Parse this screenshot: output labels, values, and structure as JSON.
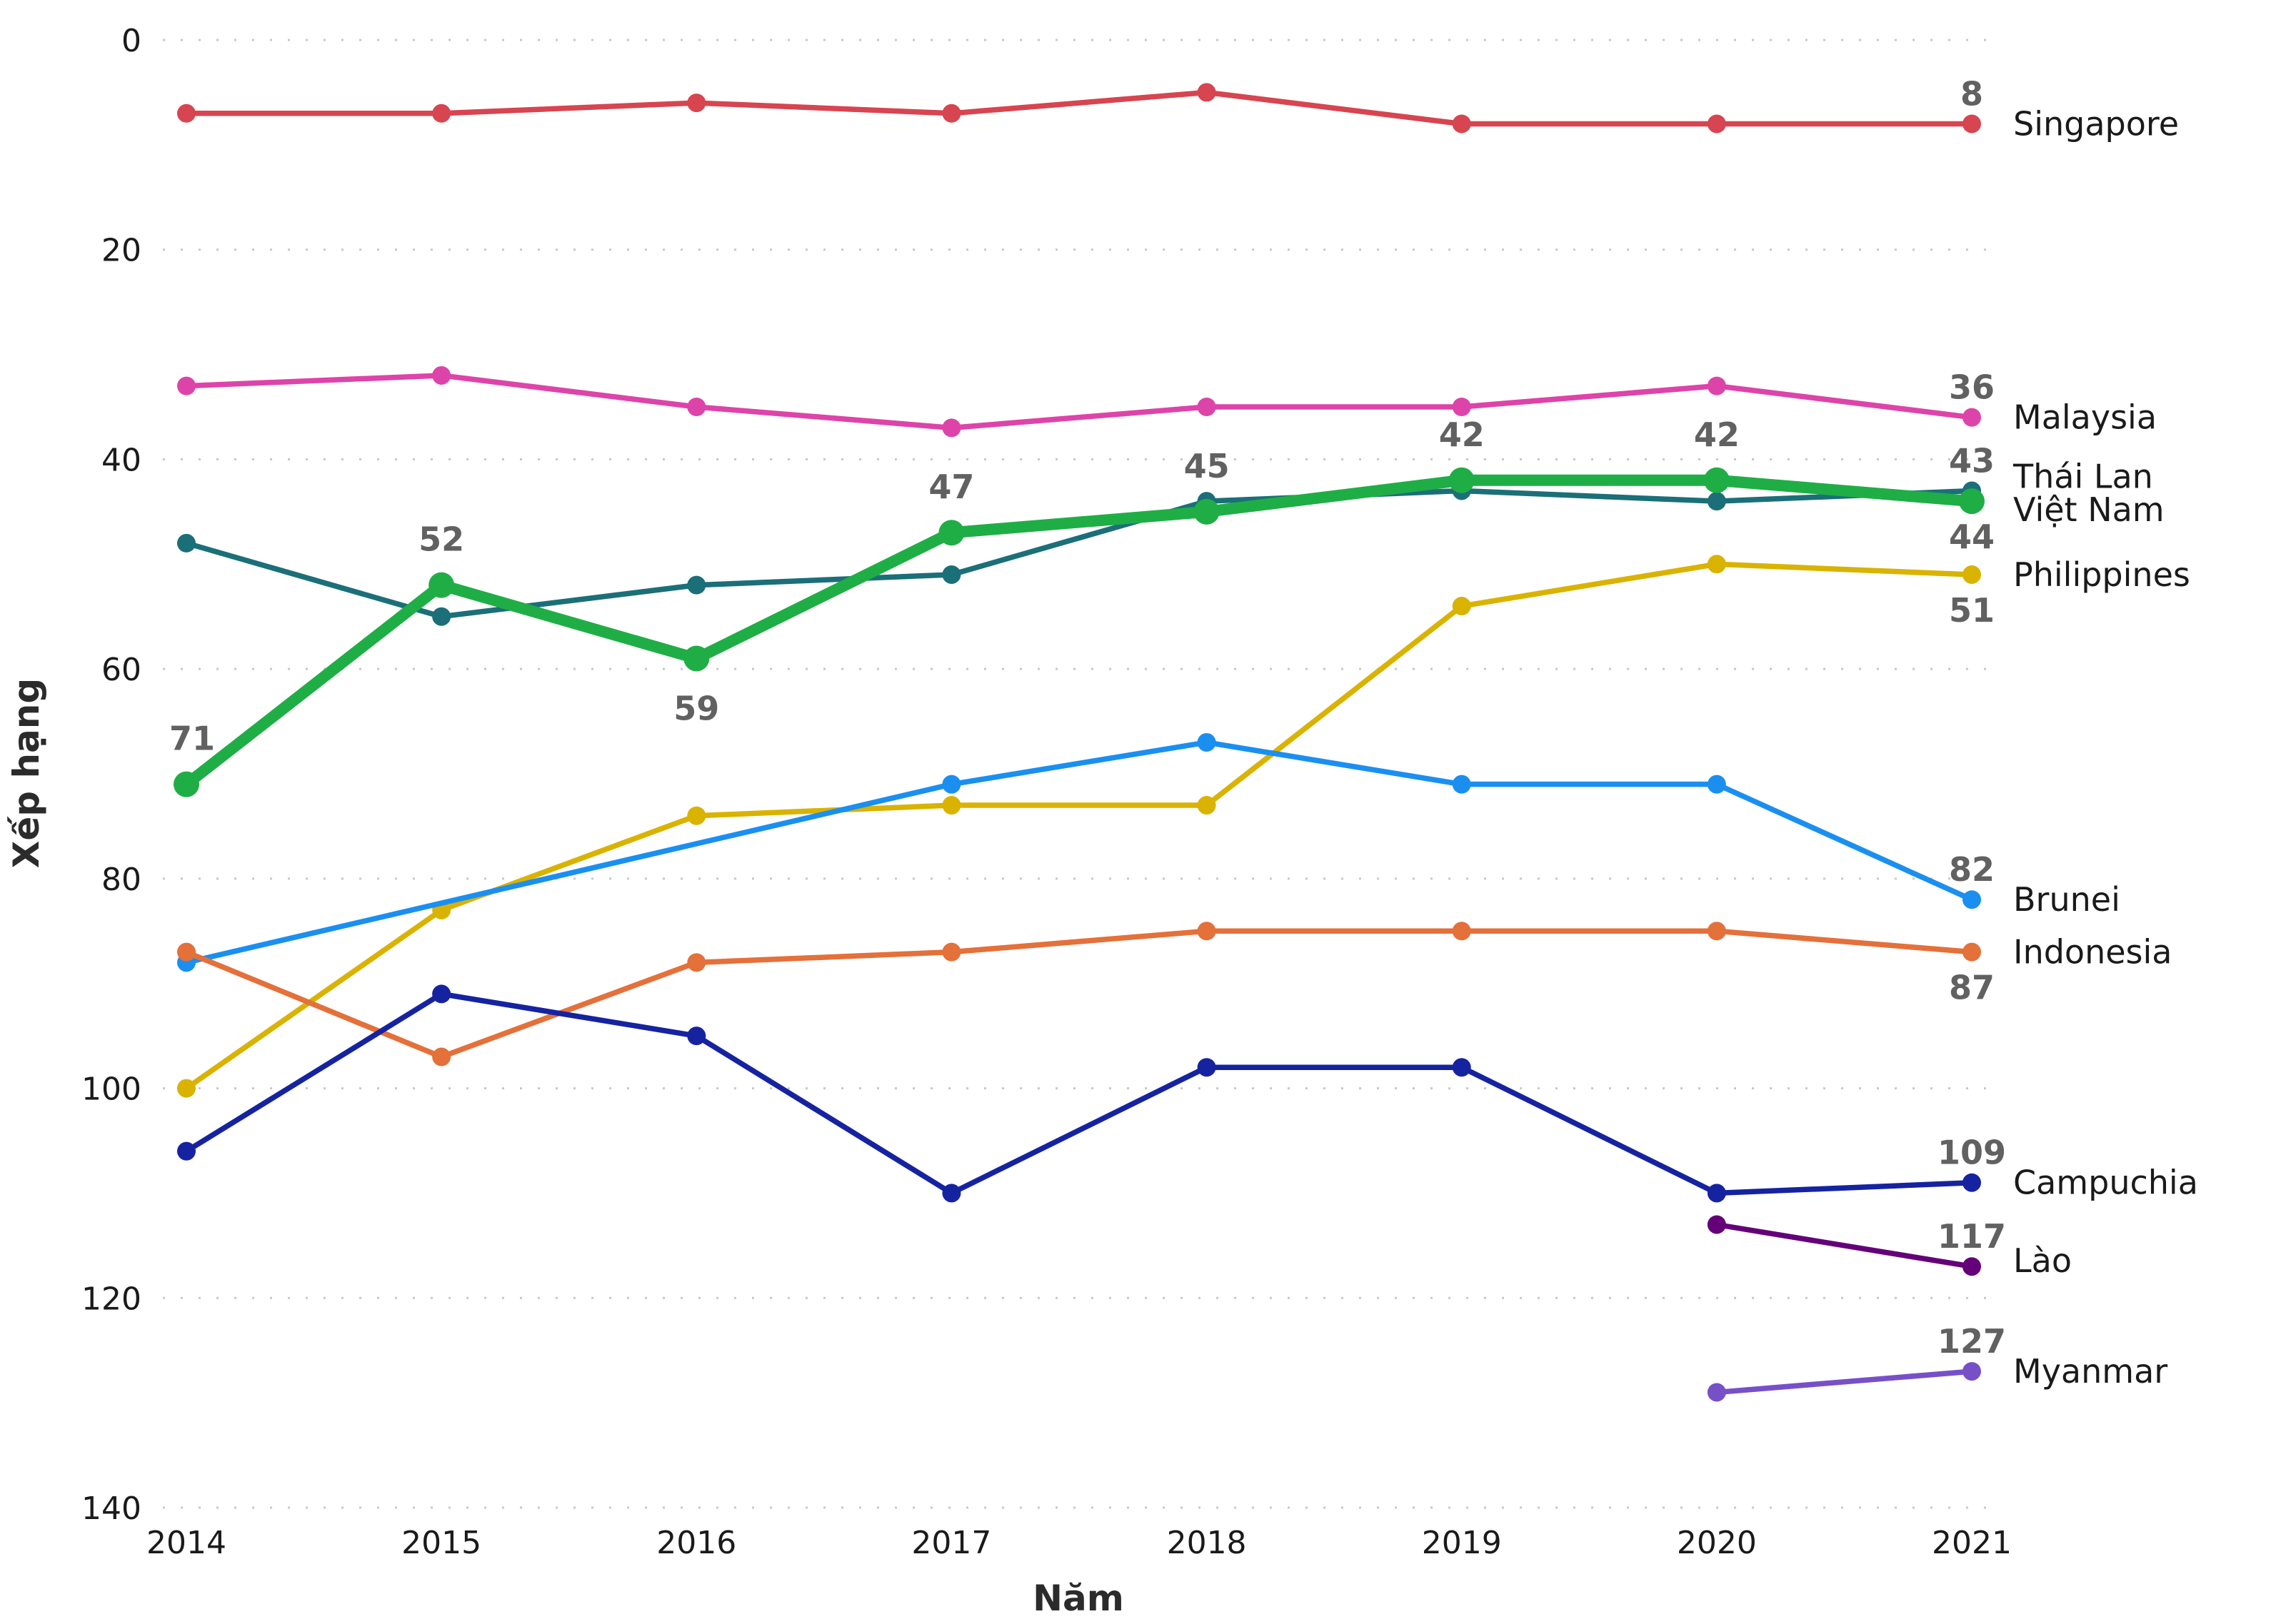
{
  "chart_data": {
    "type": "line",
    "title": "",
    "xlabel": "Năm",
    "ylabel": "Xếp hạng",
    "x": [
      2014,
      2015,
      2016,
      2017,
      2018,
      2019,
      2020,
      2021
    ],
    "x_tick_labels": [
      "2014",
      "2015",
      "2016",
      "2017",
      "2018",
      "2019",
      "2020",
      "2021"
    ],
    "y_tick_labels": [
      "0",
      "20",
      "40",
      "60",
      "80",
      "100",
      "120",
      "140"
    ],
    "y_ticks": [
      0,
      20,
      40,
      60,
      80,
      100,
      120,
      140
    ],
    "ylim": [
      0,
      140
    ],
    "y_inverted": true,
    "grid": "horizontal-dotted",
    "legend": "inline-right",
    "series": [
      {
        "name": "Singapore",
        "color": "#d64550",
        "values": [
          7,
          7,
          6,
          7,
          5,
          8,
          8,
          8
        ],
        "end_label": "8",
        "end_label_pos": "above"
      },
      {
        "name": "Malaysia",
        "color": "#dd44aa",
        "values": [
          33,
          32,
          35,
          37,
          35,
          35,
          33,
          36
        ],
        "end_label": "36",
        "end_label_pos": "above"
      },
      {
        "name": "Thái Lan",
        "color": "#1b6f78",
        "values": [
          48,
          55,
          52,
          51,
          44,
          43,
          44,
          43
        ],
        "end_label": "43",
        "end_label_pos": "above"
      },
      {
        "name": "Philippines",
        "color": "#d9b300",
        "values": [
          100,
          83,
          74,
          73,
          73,
          54,
          50,
          51
        ],
        "end_label": "51",
        "end_label_pos": "below"
      },
      {
        "name": "Brunei",
        "color": "#1a8ff0",
        "values": [
          88,
          null,
          null,
          71,
          67,
          71,
          71,
          82
        ],
        "end_label": "82",
        "end_label_pos": "above"
      },
      {
        "name": "Indonesia",
        "color": "#e4703a",
        "values": [
          87,
          97,
          88,
          87,
          85,
          85,
          85,
          87
        ],
        "end_label": "87",
        "end_label_pos": "below"
      },
      {
        "name": "Campuchia",
        "color": "#1623a0",
        "values": [
          106,
          91,
          95,
          110,
          98,
          98,
          110,
          109
        ],
        "end_label": "109",
        "end_label_pos": "above"
      },
      {
        "name": "Lào",
        "color": "#640078",
        "values": [
          null,
          null,
          null,
          null,
          null,
          null,
          113,
          117
        ],
        "end_label": "117",
        "end_label_pos": "above"
      },
      {
        "name": "Myanmar",
        "color": "#7750c8",
        "values": [
          null,
          null,
          null,
          null,
          null,
          null,
          129,
          127
        ],
        "end_label": "127",
        "end_label_pos": "above"
      },
      {
        "name": "Việt Nam",
        "color": "#1fae45",
        "highlight": true,
        "values": [
          71,
          52,
          59,
          47,
          45,
          42,
          42,
          44
        ],
        "end_label": "44",
        "end_label_pos": "below",
        "point_labels": [
          "71",
          "52",
          "59",
          "47",
          "45",
          "42",
          "42",
          "44"
        ]
      }
    ]
  }
}
